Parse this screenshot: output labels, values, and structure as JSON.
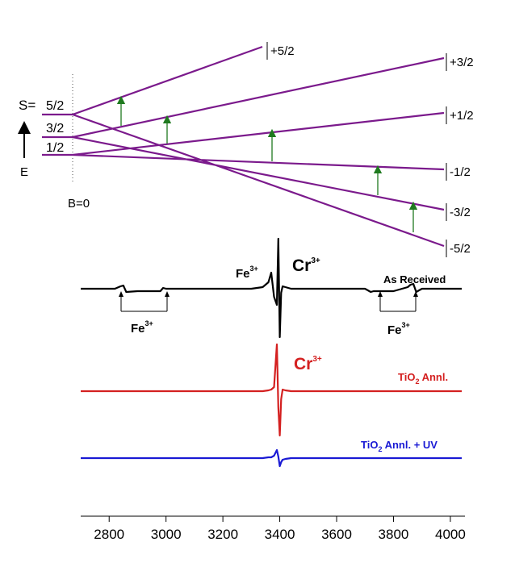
{
  "diagram": {
    "spin_label": "S=",
    "levels": [
      "5/2",
      "3/2",
      "1/2"
    ],
    "energy_label": "E",
    "field_label": "B=0",
    "sublevels": [
      "+5/2",
      "+3/2",
      "+1/2",
      "-1/2",
      "-3/2",
      "-5/2"
    ]
  },
  "chart_data": {
    "type": "line",
    "x": [
      2700,
      2800,
      2820,
      2840,
      2850,
      2860,
      2900,
      2980,
      2990,
      3000,
      3100,
      3200,
      3300,
      3340,
      3360,
      3370,
      3380,
      3390,
      3395,
      3400,
      3405,
      3410,
      3420,
      3440,
      3500,
      3600,
      3700,
      3720,
      3730,
      3800,
      3850,
      3860,
      3870,
      3880,
      3900,
      4040
    ],
    "series": [
      {
        "color": "#000000",
        "values": [
          0,
          0,
          0,
          3,
          4,
          -4,
          -3,
          -3,
          1,
          0,
          0,
          0,
          0,
          2,
          8,
          20,
          -10,
          -20,
          62,
          -60,
          -5,
          3,
          2,
          0,
          0,
          0,
          0,
          -4,
          -3,
          -3,
          2,
          5,
          6,
          -4,
          0,
          0
        ]
      },
      {
        "color": "#d42020",
        "values": [
          0,
          0,
          0,
          0,
          0,
          0,
          0,
          0,
          0,
          0,
          0,
          0,
          0,
          0,
          1,
          2,
          5,
          58,
          -20,
          -55,
          -10,
          2,
          1,
          0,
          0,
          0,
          0,
          0,
          0,
          0,
          0,
          0,
          0,
          0,
          0,
          0
        ]
      },
      {
        "color": "#1a1ad4",
        "values": [
          0,
          0,
          0,
          0,
          0,
          0,
          0,
          0,
          0,
          0,
          0,
          0,
          0,
          0,
          1,
          1,
          3,
          10,
          2,
          -10,
          -5,
          -2,
          -1,
          0,
          0,
          0,
          0,
          0,
          0,
          0,
          0,
          0,
          0,
          0,
          0,
          0
        ]
      }
    ],
    "ylim": [
      -70,
      70
    ],
    "xlim": [
      2700,
      4040
    ],
    "xticks": [
      2800,
      3000,
      3200,
      3400,
      3600,
      3800,
      4000
    ],
    "annotations": [
      {
        "text": "Fe",
        "sup": "3+"
      },
      {
        "text": "Cr",
        "sup": "3+"
      },
      {
        "text": "As Received"
      },
      {
        "text": "Fe",
        "sup": "3+"
      },
      {
        "text": "Fe",
        "sup": "3+"
      },
      {
        "text": "Cr",
        "sup": "3+"
      },
      {
        "text": "TiO",
        "sub": "2",
        "tail": " Annl."
      },
      {
        "text": "TiO",
        "sub": "2",
        "tail": " Annl. + UV"
      }
    ]
  }
}
